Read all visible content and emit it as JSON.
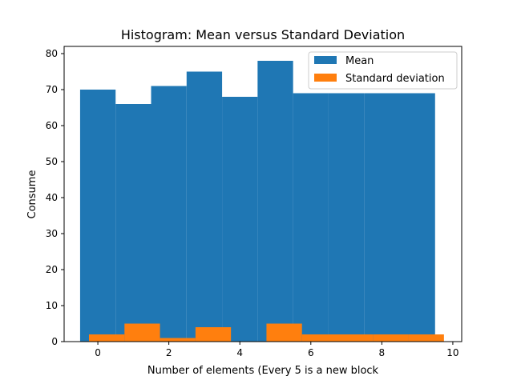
{
  "chart_data": {
    "type": "bar",
    "title": "Histogram: Mean versus Standard Deviation",
    "xlabel": "Number of elements (Every 5 is a new block",
    "ylabel": "Consume",
    "xlim": [
      -0.95,
      10.25
    ],
    "ylim": [
      0,
      82
    ],
    "x_ticks": [
      0,
      2,
      4,
      6,
      8,
      10
    ],
    "y_ticks": [
      0,
      10,
      20,
      30,
      40,
      50,
      60,
      70,
      80
    ],
    "grid": false,
    "legend_position": "top-right",
    "series": [
      {
        "name": "Mean",
        "color": "#1f77b4",
        "bar_width": 1.0,
        "x": [
          0,
          1,
          2,
          3,
          4,
          5,
          6,
          7,
          8,
          9
        ],
        "values": [
          70,
          66,
          71,
          75,
          68,
          78,
          69,
          69,
          69,
          69
        ]
      },
      {
        "name": "Standard deviation",
        "color": "#ff7f0e",
        "bar_width": 1.0,
        "x": [
          0.25,
          1.25,
          2.25,
          3.25,
          4.25,
          5.25,
          6.25,
          7.25,
          8.25,
          9.25
        ],
        "values": [
          2,
          5,
          1,
          4,
          0,
          5,
          2,
          2,
          2,
          2
        ]
      }
    ]
  }
}
